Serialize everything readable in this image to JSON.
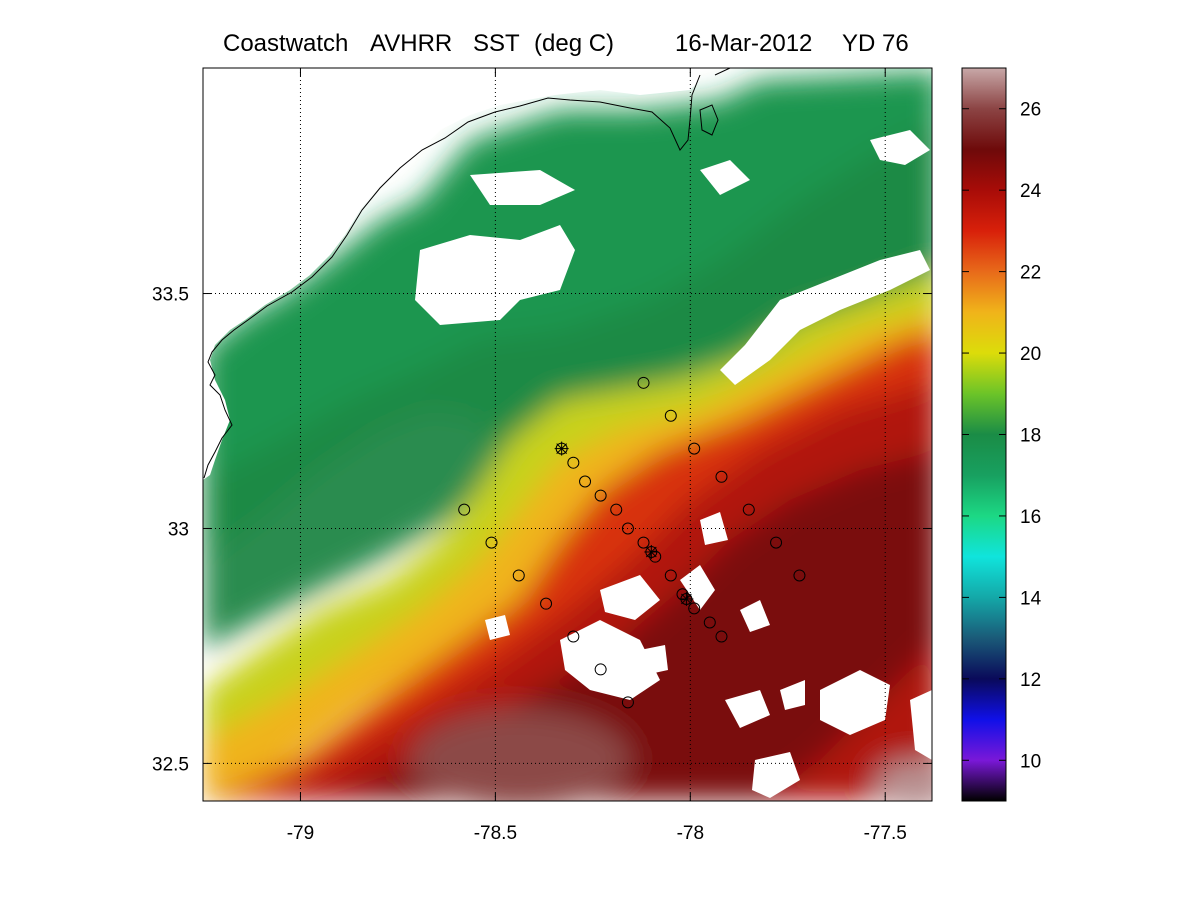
{
  "title": {
    "source": "Coastwatch",
    "sensor": "AVHRR",
    "product": "SST",
    "units": "(deg C)",
    "date": "16-Mar-2012",
    "yearday": "YD 76"
  },
  "chart_data": {
    "type": "heatmap",
    "xlim": [
      -79.25,
      -77.38
    ],
    "ylim": [
      32.42,
      33.98
    ],
    "x_ticks": [
      "-79",
      "-78.5",
      "-78",
      "-77.5"
    ],
    "x_tick_values": [
      -79,
      -78.5,
      -78,
      -77.5
    ],
    "y_ticks": [
      "32.5",
      "33",
      "33.5"
    ],
    "y_tick_values": [
      32.5,
      33,
      33.5
    ],
    "grid": "dotted at ticks",
    "colorbar": {
      "range": [
        9,
        27
      ],
      "ticks": [
        "10",
        "12",
        "14",
        "16",
        "18",
        "20",
        "22",
        "24",
        "26"
      ],
      "tick_values": [
        10,
        12,
        14,
        16,
        18,
        20,
        22,
        24,
        26
      ]
    },
    "colormap": [
      "#000000",
      "#7a18d8",
      "#1010e8",
      "#0a0a5a",
      "#1a5a78",
      "#14a8a8",
      "#10e4dc",
      "#1cd884",
      "#18a060",
      "#1a8c46",
      "#6cc428",
      "#dcdc0a",
      "#f0b41a",
      "#e86a1a",
      "#d8200a",
      "#a80c08",
      "#6e0a0a",
      "#8c4444",
      "#c8a8a8"
    ],
    "stations": [
      {
        "lon": -78.12,
        "lat": 33.31,
        "marker": "circle"
      },
      {
        "lon": -78.05,
        "lat": 33.24,
        "marker": "circle"
      },
      {
        "lon": -77.99,
        "lat": 33.17,
        "marker": "circle"
      },
      {
        "lon": -77.92,
        "lat": 33.11,
        "marker": "circle"
      },
      {
        "lon": -77.85,
        "lat": 33.04,
        "marker": "circle"
      },
      {
        "lon": -77.78,
        "lat": 32.97,
        "marker": "circle"
      },
      {
        "lon": -77.72,
        "lat": 32.9,
        "marker": "circle"
      },
      {
        "lon": -78.33,
        "lat": 33.17,
        "marker": "circle+star"
      },
      {
        "lon": -78.3,
        "lat": 33.14,
        "marker": "circle"
      },
      {
        "lon": -78.27,
        "lat": 33.1,
        "marker": "circle"
      },
      {
        "lon": -78.23,
        "lat": 33.07,
        "marker": "circle"
      },
      {
        "lon": -78.19,
        "lat": 33.04,
        "marker": "circle"
      },
      {
        "lon": -78.16,
        "lat": 33.0,
        "marker": "circle"
      },
      {
        "lon": -78.12,
        "lat": 32.97,
        "marker": "circle"
      },
      {
        "lon": -78.1,
        "lat": 32.95,
        "marker": "circle+star"
      },
      {
        "lon": -78.09,
        "lat": 32.94,
        "marker": "circle"
      },
      {
        "lon": -78.05,
        "lat": 32.9,
        "marker": "circle"
      },
      {
        "lon": -78.02,
        "lat": 32.86,
        "marker": "circle"
      },
      {
        "lon": -78.01,
        "lat": 32.85,
        "marker": "circle+star"
      },
      {
        "lon": -77.99,
        "lat": 32.83,
        "marker": "circle"
      },
      {
        "lon": -77.95,
        "lat": 32.8,
        "marker": "circle"
      },
      {
        "lon": -77.92,
        "lat": 32.77,
        "marker": "circle"
      },
      {
        "lon": -78.58,
        "lat": 33.04,
        "marker": "circle"
      },
      {
        "lon": -78.51,
        "lat": 32.97,
        "marker": "circle"
      },
      {
        "lon": -78.44,
        "lat": 32.9,
        "marker": "circle"
      },
      {
        "lon": -78.37,
        "lat": 32.84,
        "marker": "circle"
      },
      {
        "lon": -78.3,
        "lat": 32.77,
        "marker": "circle"
      },
      {
        "lon": -78.23,
        "lat": 32.7,
        "marker": "circle"
      },
      {
        "lon": -78.16,
        "lat": 32.63,
        "marker": "circle"
      }
    ]
  }
}
